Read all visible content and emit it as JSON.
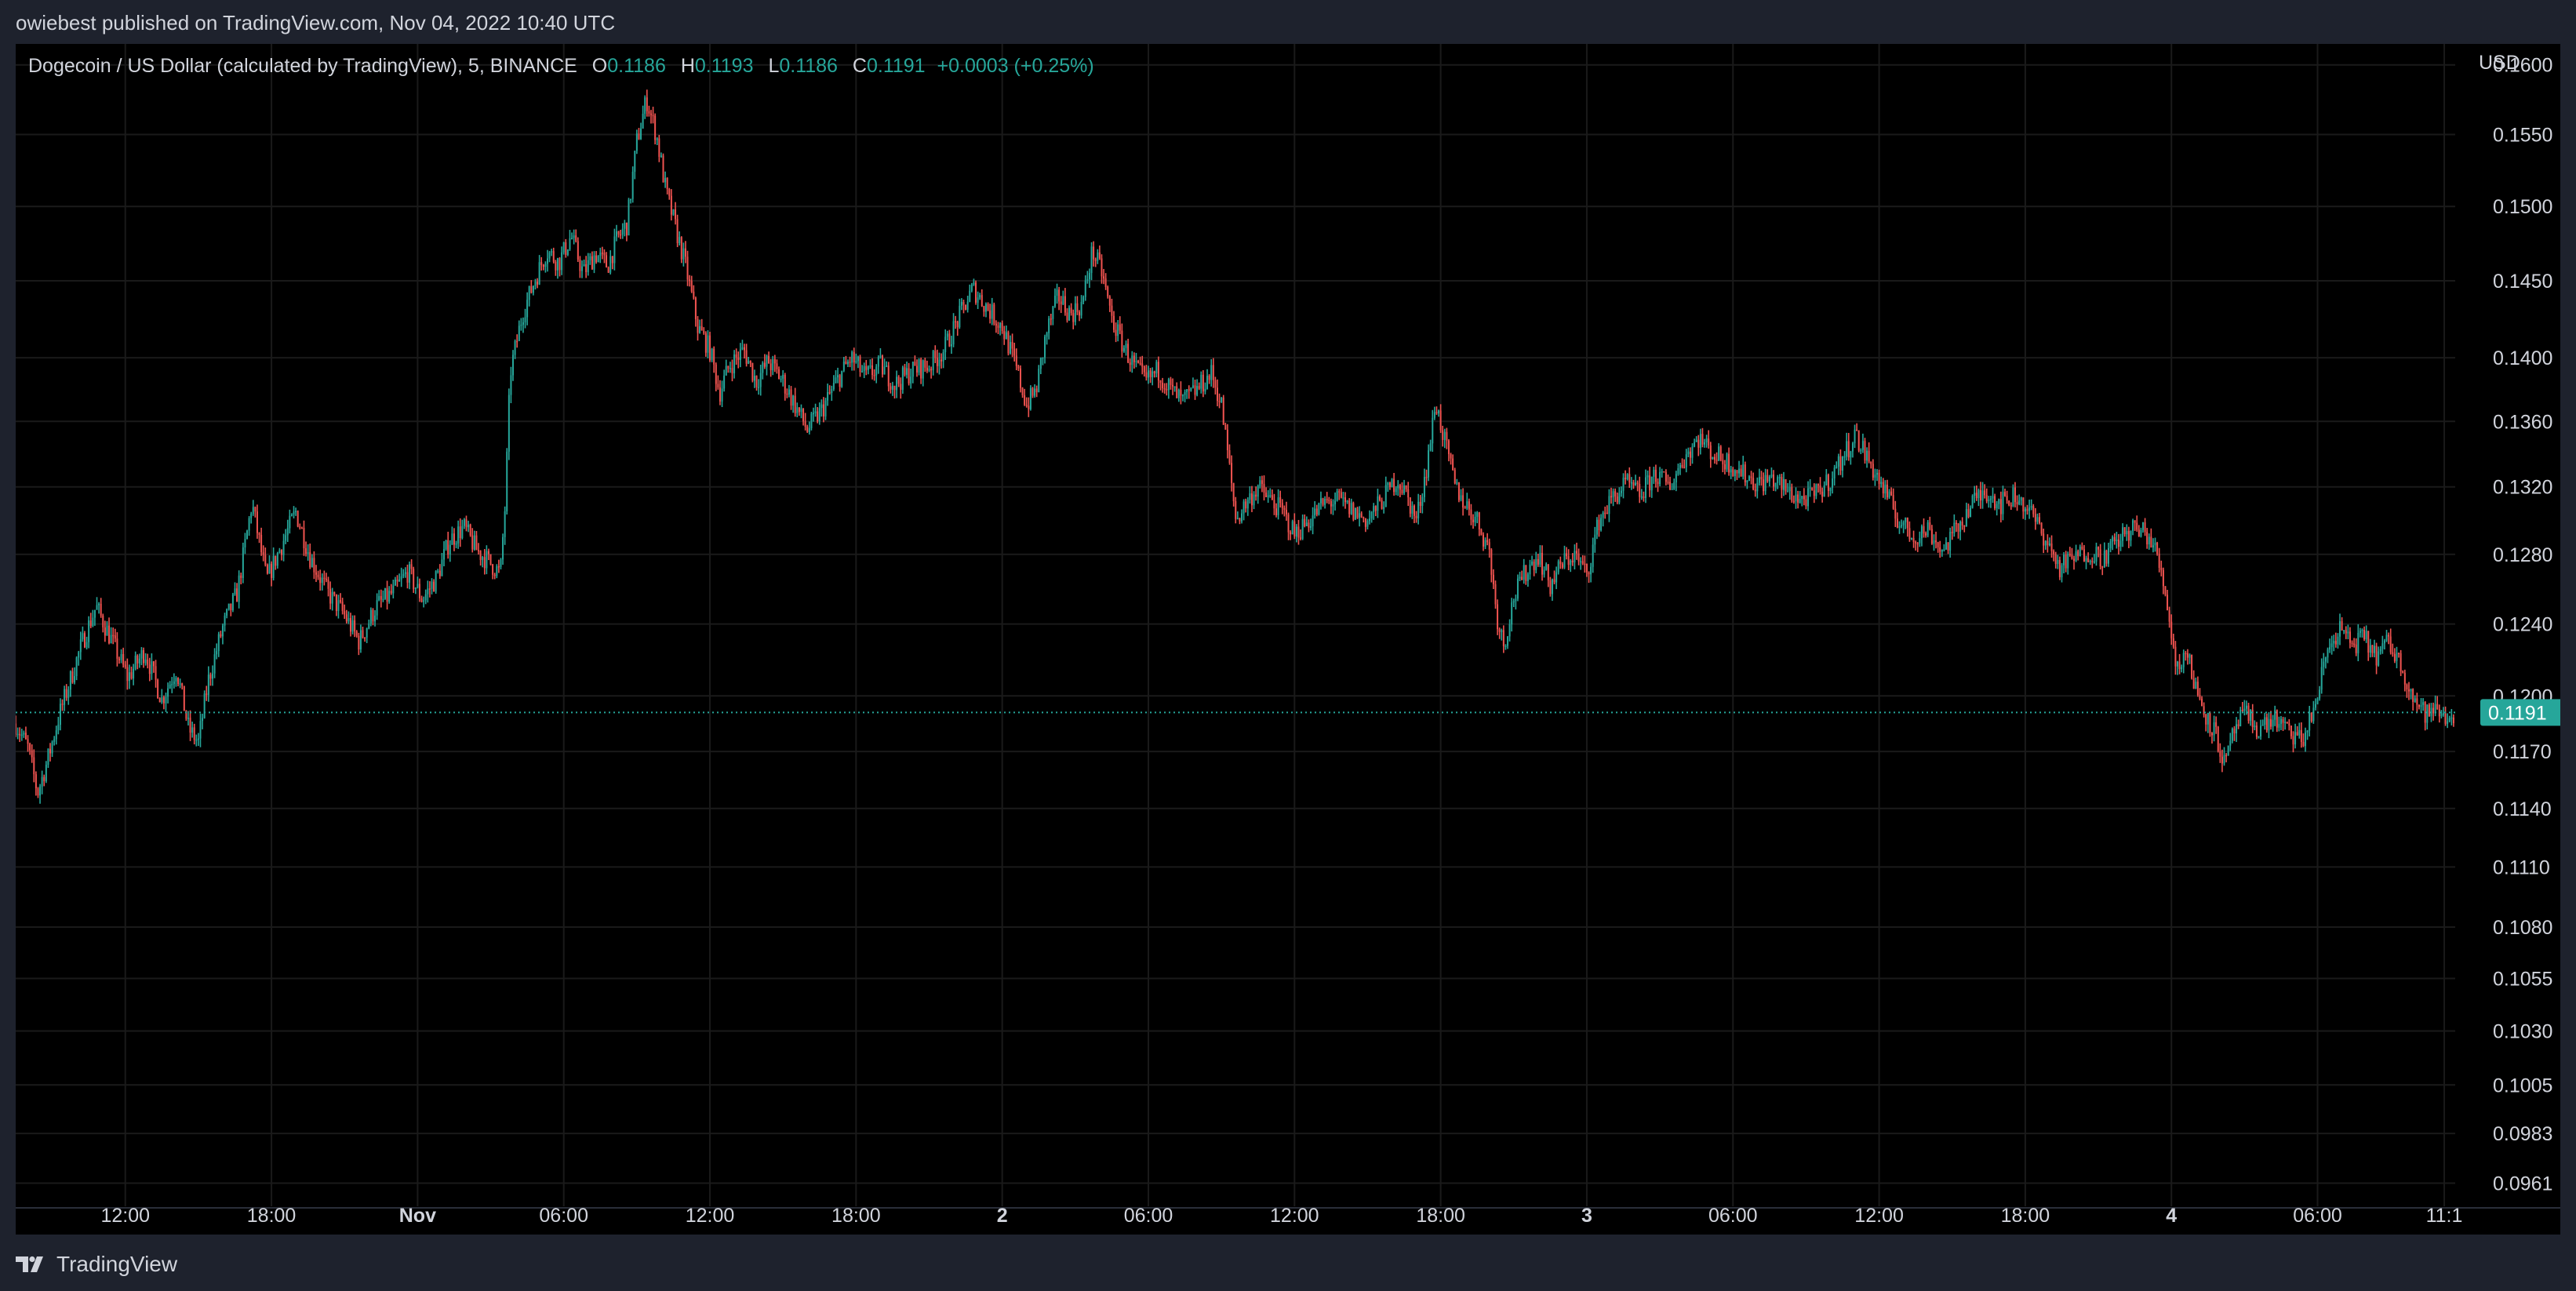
{
  "header": {
    "published_text": "owiebest published on TradingView.com, Nov 04, 2022 10:40 UTC"
  },
  "legend": {
    "symbol": "Dogecoin / US Dollar (calculated by TradingView), 5, BINANCE",
    "open_label": "O",
    "open_value": "0.1186",
    "high_label": "H",
    "high_value": "0.1193",
    "low_label": "L",
    "low_value": "0.1186",
    "close_label": "C",
    "close_value": "0.1191",
    "change": "+0.0003 (+0.25%)"
  },
  "footer": {
    "brand_label": "TradingView",
    "brand_icon": "tradingview-logo-icon"
  },
  "colors": {
    "up": "#26a69a",
    "down": "#ef5350",
    "background": "#000000",
    "frame": "#1e222d",
    "text": "#d1d4dc",
    "grid": "#1a1a1a"
  },
  "chart_data": {
    "type": "candlestick",
    "title": "Dogecoin / US Dollar (calculated by TradingView), 5, BINANCE",
    "currency_label": "USD",
    "y_scale": "log",
    "ylim": [
      0.0955,
      0.1605
    ],
    "y_ticks": [
      "0.1600",
      "0.1550",
      "0.1500",
      "0.1450",
      "0.1400",
      "0.1360",
      "0.1320",
      "0.1280",
      "0.1240",
      "0.1200",
      "0.1170",
      "0.1140",
      "0.1110",
      "0.1080",
      "0.1055",
      "0.1030",
      "0.1005",
      "0.0983",
      "0.0961"
    ],
    "x_ticks": [
      {
        "label": "12:00",
        "hours": 12,
        "bold": false
      },
      {
        "label": "18:00",
        "hours": 18,
        "bold": false
      },
      {
        "label": "Nov",
        "hours": 24,
        "bold": true
      },
      {
        "label": "06:00",
        "hours": 30,
        "bold": false
      },
      {
        "label": "12:00",
        "hours": 36,
        "bold": false
      },
      {
        "label": "18:00",
        "hours": 42,
        "bold": false
      },
      {
        "label": "2",
        "hours": 48,
        "bold": true
      },
      {
        "label": "06:00",
        "hours": 54,
        "bold": false
      },
      {
        "label": "12:00",
        "hours": 60,
        "bold": false
      },
      {
        "label": "18:00",
        "hours": 66,
        "bold": false
      },
      {
        "label": "3",
        "hours": 72,
        "bold": true
      },
      {
        "label": "06:00",
        "hours": 78,
        "bold": false
      },
      {
        "label": "12:00",
        "hours": 84,
        "bold": false
      },
      {
        "label": "18:00",
        "hours": 90,
        "bold": false
      },
      {
        "label": "4",
        "hours": 96,
        "bold": true
      },
      {
        "label": "06:00",
        "hours": 102,
        "bold": false
      },
      {
        "label": "11:1",
        "hours": 107.2,
        "bold": false
      }
    ],
    "x_unit": "hours since Oct 31 00:00 UTC",
    "x_range": [
      7.5,
      107.65
    ],
    "last_price": "0.1191",
    "last_price_value": 0.1191,
    "series": [
      {
        "name": "DOGEUSD",
        "interval_minutes": 5,
        "anchors": [
          [
            7.5,
            0.1185
          ],
          [
            8.0,
            0.1172
          ],
          [
            8.4,
            0.1148
          ],
          [
            8.8,
            0.1165
          ],
          [
            9.3,
            0.119
          ],
          [
            10.2,
            0.1228
          ],
          [
            10.8,
            0.125
          ],
          [
            11.4,
            0.1232
          ],
          [
            12.1,
            0.121
          ],
          [
            12.8,
            0.1225
          ],
          [
            13.5,
            0.1198
          ],
          [
            14.1,
            0.1215
          ],
          [
            14.6,
            0.1182
          ],
          [
            15.0,
            0.1175
          ],
          [
            15.4,
            0.1208
          ],
          [
            16.0,
            0.1238
          ],
          [
            16.6,
            0.1258
          ],
          [
            17.2,
            0.131
          ],
          [
            17.8,
            0.1265
          ],
          [
            18.4,
            0.1285
          ],
          [
            19.0,
            0.1305
          ],
          [
            19.6,
            0.1278
          ],
          [
            20.3,
            0.1258
          ],
          [
            21.0,
            0.1245
          ],
          [
            21.6,
            0.123
          ],
          [
            22.3,
            0.125
          ],
          [
            23.0,
            0.1258
          ],
          [
            23.6,
            0.127
          ],
          [
            24.2,
            0.1254
          ],
          [
            24.8,
            0.1267
          ],
          [
            25.3,
            0.1288
          ],
          [
            25.9,
            0.1296
          ],
          [
            26.4,
            0.1283
          ],
          [
            26.9,
            0.1276
          ],
          [
            27.4,
            0.1269
          ],
          [
            27.6,
            0.131
          ],
          [
            27.8,
            0.139
          ],
          [
            28.3,
            0.1428
          ],
          [
            28.8,
            0.145
          ],
          [
            29.3,
            0.147
          ],
          [
            29.8,
            0.1462
          ],
          [
            30.3,
            0.148
          ],
          [
            30.8,
            0.1455
          ],
          [
            31.3,
            0.1468
          ],
          [
            31.8,
            0.146
          ],
          [
            32.2,
            0.1478
          ],
          [
            32.6,
            0.1488
          ],
          [
            33.0,
            0.1545
          ],
          [
            33.4,
            0.1575
          ],
          [
            33.8,
            0.155
          ],
          [
            34.2,
            0.151
          ],
          [
            34.6,
            0.1485
          ],
          [
            35.0,
            0.146
          ],
          [
            35.5,
            0.142
          ],
          [
            36.0,
            0.1405
          ],
          [
            36.4,
            0.1378
          ],
          [
            36.8,
            0.1395
          ],
          [
            37.4,
            0.1405
          ],
          [
            37.9,
            0.1385
          ],
          [
            38.4,
            0.1398
          ],
          [
            39.0,
            0.1385
          ],
          [
            39.5,
            0.137
          ],
          [
            40.0,
            0.1355
          ],
          [
            40.6,
            0.1367
          ],
          [
            41.2,
            0.1385
          ],
          [
            41.8,
            0.14
          ],
          [
            42.4,
            0.1388
          ],
          [
            43.0,
            0.1395
          ],
          [
            43.6,
            0.1383
          ],
          [
            44.3,
            0.1392
          ],
          [
            45.0,
            0.1395
          ],
          [
            45.6,
            0.1405
          ],
          [
            46.2,
            0.1425
          ],
          [
            46.8,
            0.1445
          ],
          [
            47.4,
            0.1432
          ],
          [
            48.0,
            0.142
          ],
          [
            48.6,
            0.1392
          ],
          [
            49.0,
            0.137
          ],
          [
            49.4,
            0.138
          ],
          [
            49.8,
            0.1415
          ],
          [
            50.3,
            0.144
          ],
          [
            50.8,
            0.1428
          ],
          [
            51.3,
            0.1435
          ],
          [
            51.7,
            0.147
          ],
          [
            52.1,
            0.1455
          ],
          [
            52.5,
            0.1425
          ],
          [
            52.9,
            0.141
          ],
          [
            53.4,
            0.1395
          ],
          [
            53.9,
            0.1385
          ],
          [
            54.4,
            0.1392
          ],
          [
            54.9,
            0.138
          ],
          [
            55.4,
            0.1372
          ],
          [
            56.0,
            0.138
          ],
          [
            56.6,
            0.139
          ],
          [
            57.0,
            0.137
          ],
          [
            57.3,
            0.1335
          ],
          [
            57.6,
            0.13
          ],
          [
            58.0,
            0.131
          ],
          [
            58.5,
            0.132
          ],
          [
            59.0,
            0.1312
          ],
          [
            59.5,
            0.1305
          ],
          [
            60.0,
            0.1292
          ],
          [
            60.6,
            0.13
          ],
          [
            61.2,
            0.131
          ],
          [
            61.8,
            0.1312
          ],
          [
            62.4,
            0.1305
          ],
          [
            63.0,
            0.13
          ],
          [
            63.6,
            0.1312
          ],
          [
            64.2,
            0.1325
          ],
          [
            64.6,
            0.1315
          ],
          [
            65.0,
            0.13
          ],
          [
            65.4,
            0.133
          ],
          [
            65.8,
            0.1372
          ],
          [
            66.2,
            0.1345
          ],
          [
            66.6,
            0.132
          ],
          [
            67.0,
            0.131
          ],
          [
            67.5,
            0.13
          ],
          [
            68.0,
            0.1282
          ],
          [
            68.3,
            0.1245
          ],
          [
            68.6,
            0.1228
          ],
          [
            69.0,
            0.1255
          ],
          [
            69.5,
            0.127
          ],
          [
            70.0,
            0.128
          ],
          [
            70.5,
            0.1262
          ],
          [
            71.0,
            0.1275
          ],
          [
            71.5,
            0.128
          ],
          [
            72.0,
            0.1268
          ],
          [
            72.5,
            0.13
          ],
          [
            73.0,
            0.1312
          ],
          [
            73.6,
            0.1322
          ],
          [
            74.2,
            0.1315
          ],
          [
            74.8,
            0.1328
          ],
          [
            75.4,
            0.132
          ],
          [
            76.0,
            0.1338
          ],
          [
            76.6,
            0.135
          ],
          [
            77.2,
            0.134
          ],
          [
            77.8,
            0.1335
          ],
          [
            78.4,
            0.1328
          ],
          [
            79.0,
            0.1322
          ],
          [
            79.6,
            0.1325
          ],
          [
            80.2,
            0.1318
          ],
          [
            80.8,
            0.1312
          ],
          [
            81.4,
            0.1315
          ],
          [
            82.0,
            0.1325
          ],
          [
            82.6,
            0.134
          ],
          [
            83.0,
            0.1352
          ],
          [
            83.6,
            0.1335
          ],
          [
            84.2,
            0.1318
          ],
          [
            84.8,
            0.13
          ],
          [
            85.4,
            0.129
          ],
          [
            86.0,
            0.1295
          ],
          [
            86.6,
            0.1282
          ],
          [
            87.2,
            0.1295
          ],
          [
            87.8,
            0.131
          ],
          [
            88.4,
            0.1318
          ],
          [
            89.0,
            0.131
          ],
          [
            89.6,
            0.1315
          ],
          [
            90.2,
            0.1305
          ],
          [
            90.8,
            0.129
          ],
          [
            91.4,
            0.1272
          ],
          [
            92.0,
            0.1278
          ],
          [
            92.6,
            0.1282
          ],
          [
            93.2,
            0.1278
          ],
          [
            93.8,
            0.1288
          ],
          [
            94.4,
            0.1295
          ],
          [
            95.0,
            0.1292
          ],
          [
            95.4,
            0.128
          ],
          [
            95.8,
            0.1255
          ],
          [
            96.2,
            0.1215
          ],
          [
            96.6,
            0.1225
          ],
          [
            97.0,
            0.1205
          ],
          [
            97.4,
            0.119
          ],
          [
            97.8,
            0.118
          ],
          [
            98.2,
            0.1162
          ],
          [
            98.6,
            0.1182
          ],
          [
            99.0,
            0.119
          ],
          [
            99.6,
            0.1182
          ],
          [
            100.2,
            0.1188
          ],
          [
            100.8,
            0.118
          ],
          [
            101.4,
            0.1176
          ],
          [
            101.9,
            0.1195
          ],
          [
            102.4,
            0.1225
          ],
          [
            102.9,
            0.1238
          ],
          [
            103.4,
            0.1228
          ],
          [
            103.9,
            0.1232
          ],
          [
            104.4,
            0.1222
          ],
          [
            104.9,
            0.123
          ],
          [
            105.4,
            0.1218
          ],
          [
            105.9,
            0.12
          ],
          [
            106.4,
            0.119
          ],
          [
            106.9,
            0.1192
          ],
          [
            107.3,
            0.1188
          ],
          [
            107.65,
            0.1191
          ]
        ]
      }
    ]
  }
}
